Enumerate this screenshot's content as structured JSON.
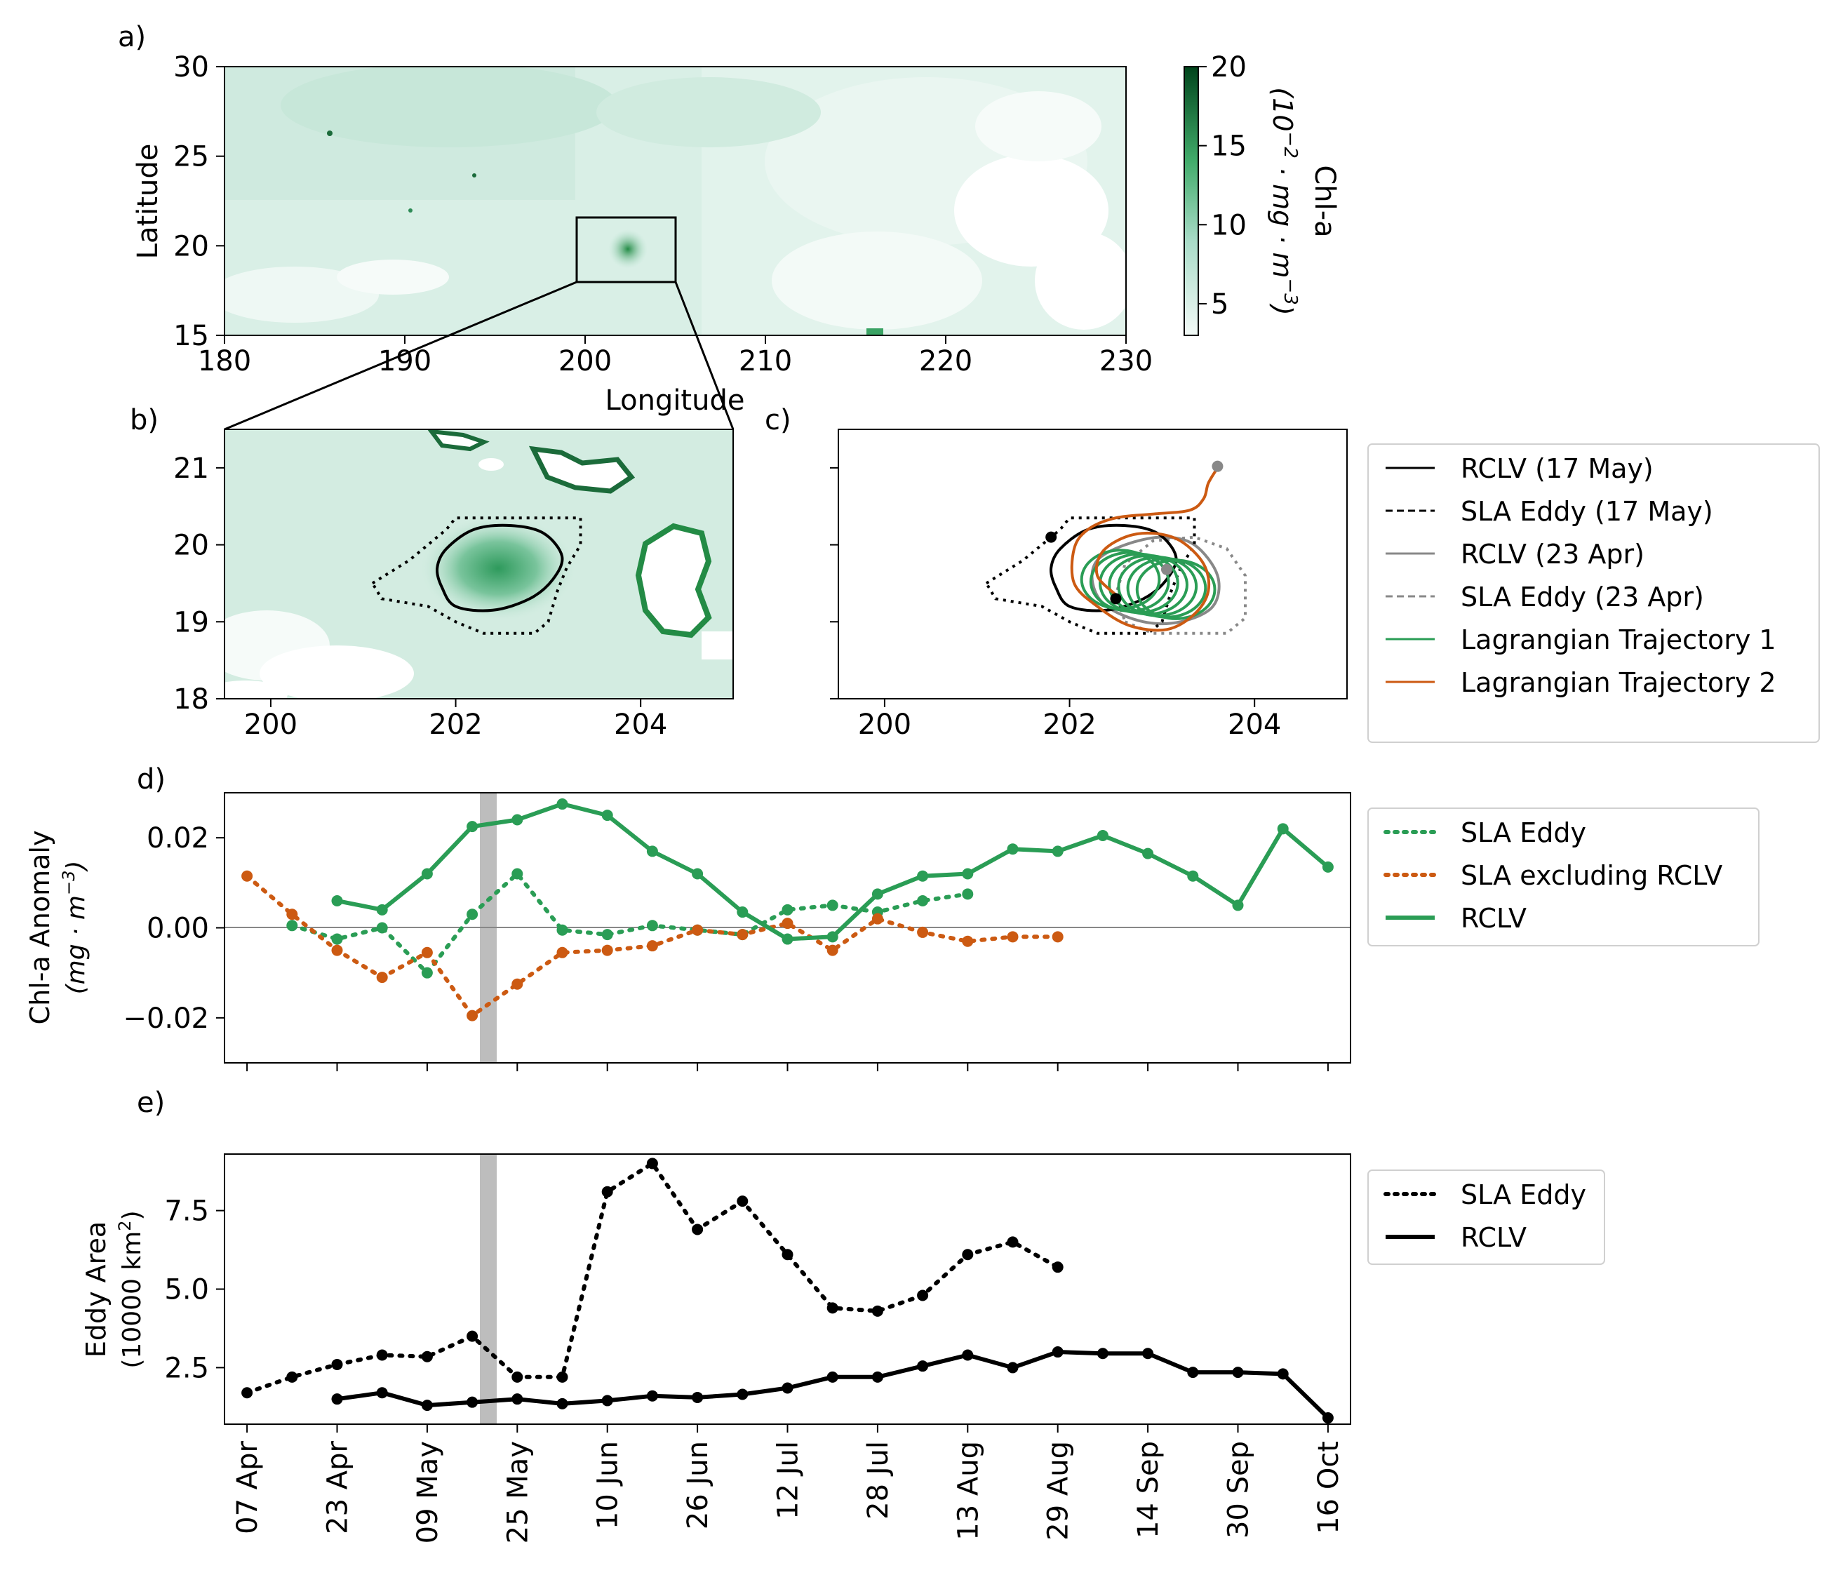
{
  "colors": {
    "chl_low": "#f1f9f6",
    "chl_mid": "#a9dcc8",
    "chl_high": "#00441b",
    "green": "#2a9d55",
    "orange": "#cc5a12",
    "grey": "#888888",
    "shade": "#bdbdbd",
    "black": "#000000"
  },
  "chart_data": [
    {
      "panel": "a",
      "type": "heatmap",
      "panel_label": "a)",
      "xlabel": "Longitude",
      "ylabel": "Latitude",
      "xlim": [
        180,
        230
      ],
      "ylim": [
        15,
        30
      ],
      "xticks": [
        180,
        190,
        200,
        210,
        220,
        230
      ],
      "yticks": [
        15,
        20,
        25,
        30
      ],
      "zoom_box": {
        "lon": [
          199.7,
          205.0
        ],
        "lat": [
          18.0,
          21.6
        ]
      },
      "colorbar": {
        "label": "Chl-a",
        "units": "(10^{-2} · mg · m^{-3})",
        "range": [
          3,
          20
        ],
        "ticks": [
          5,
          10,
          15,
          20
        ]
      }
    },
    {
      "panel": "b",
      "type": "heatmap",
      "panel_label": "b)",
      "xlim": [
        199.5,
        205.0
      ],
      "ylim": [
        18,
        21.5
      ],
      "xticks": [
        200,
        202,
        204
      ],
      "yticks": [
        18,
        19,
        20,
        21
      ],
      "rclv_17may": [
        [
          201.8,
          19.7
        ],
        [
          201.9,
          19.95
        ],
        [
          202.2,
          20.2
        ],
        [
          202.6,
          20.25
        ],
        [
          202.95,
          20.15
        ],
        [
          203.15,
          19.85
        ],
        [
          203.05,
          19.55
        ],
        [
          202.8,
          19.3
        ],
        [
          202.4,
          19.15
        ],
        [
          202.0,
          19.2
        ],
        [
          201.85,
          19.45
        ]
      ],
      "sla_eddy_17may": [
        [
          201.1,
          19.5
        ],
        [
          201.5,
          19.8
        ],
        [
          201.9,
          20.2
        ],
        [
          202.0,
          20.35
        ],
        [
          203.35,
          20.35
        ],
        [
          203.35,
          20.0
        ],
        [
          203.2,
          19.7
        ],
        [
          203.1,
          19.4
        ],
        [
          203.0,
          19.0
        ],
        [
          202.85,
          18.85
        ],
        [
          202.3,
          18.85
        ],
        [
          202.0,
          19.0
        ],
        [
          201.7,
          19.2
        ],
        [
          201.2,
          19.3
        ]
      ]
    },
    {
      "panel": "c",
      "type": "line",
      "panel_label": "c)",
      "xlim": [
        199.5,
        205.0
      ],
      "ylim": [
        18,
        21.5
      ],
      "xticks": [
        200,
        202,
        204
      ],
      "yticks": [
        18,
        19,
        20,
        21
      ],
      "legend_position": "right",
      "series": [
        {
          "name": "RCLV (17 May)",
          "style": "solid-black"
        },
        {
          "name": "SLA Eddy (17 May)",
          "style": "dashed-black"
        },
        {
          "name": "RCLV (23 Apr)",
          "style": "solid-grey"
        },
        {
          "name": "SLA Eddy (23 Apr)",
          "style": "dashed-grey"
        },
        {
          "name": "Lagrangian Trajectory 1",
          "style": "solid-green"
        },
        {
          "name": "Lagrangian Trajectory 2",
          "style": "solid-orange"
        }
      ],
      "rclv_23apr": [
        [
          202.3,
          19.8
        ],
        [
          202.6,
          20.0
        ],
        [
          203.0,
          20.1
        ],
        [
          203.35,
          20.0
        ],
        [
          203.6,
          19.6
        ],
        [
          203.55,
          19.2
        ],
        [
          203.2,
          19.0
        ],
        [
          202.8,
          19.0
        ],
        [
          202.4,
          19.2
        ],
        [
          202.25,
          19.5
        ]
      ],
      "sla_eddy_23apr": [
        [
          202.6,
          19.0
        ],
        [
          202.9,
          18.85
        ],
        [
          203.7,
          18.85
        ],
        [
          203.9,
          19.05
        ],
        [
          203.9,
          19.6
        ],
        [
          203.7,
          19.95
        ],
        [
          203.35,
          20.1
        ],
        [
          202.9,
          20.05
        ],
        [
          202.6,
          19.75
        ],
        [
          202.5,
          19.35
        ]
      ],
      "trajectory2": [
        [
          203.6,
          21.0
        ],
        [
          203.5,
          20.8
        ],
        [
          203.45,
          20.6
        ],
        [
          203.3,
          20.45
        ],
        [
          202.9,
          20.4
        ],
        [
          202.5,
          20.35
        ],
        [
          202.2,
          20.2
        ],
        [
          202.05,
          19.95
        ],
        [
          202.05,
          19.5
        ],
        [
          202.3,
          19.2
        ],
        [
          202.65,
          18.95
        ],
        [
          203.05,
          18.9
        ],
        [
          203.35,
          19.1
        ],
        [
          203.5,
          19.4
        ],
        [
          203.45,
          19.75
        ],
        [
          203.2,
          20.05
        ],
        [
          202.9,
          20.15
        ],
        [
          202.6,
          20.1
        ],
        [
          202.35,
          19.9
        ],
        [
          202.3,
          19.6
        ],
        [
          202.5,
          19.35
        ]
      ],
      "trajectory1_centers": [
        [
          202.55,
          19.55
        ],
        [
          202.65,
          19.52
        ],
        [
          202.75,
          19.5
        ],
        [
          202.85,
          19.48
        ],
        [
          202.95,
          19.46
        ],
        [
          203.05,
          19.44
        ],
        [
          203.15,
          19.42
        ]
      ],
      "trajectory1_radius": [
        0.42,
        0.38
      ],
      "markers": [
        {
          "lon": 201.8,
          "lat": 20.1,
          "color": "black"
        },
        {
          "lon": 202.5,
          "lat": 19.3,
          "color": "black"
        },
        {
          "lon": 203.6,
          "lat": 21.02,
          "color": "grey"
        },
        {
          "lon": 203.05,
          "lat": 19.68,
          "color": "grey"
        }
      ]
    },
    {
      "panel": "d",
      "type": "line",
      "panel_label": "d)",
      "ylabel": "Chl-a Anomaly",
      "ylabel_units": "(mg · m^{-3})",
      "xlim": [
        -4,
        196
      ],
      "ylim": [
        -0.03,
        0.03
      ],
      "yticks": [
        -0.02,
        0.0,
        0.02
      ],
      "ytick_labels": [
        "−0.02",
        "0.00",
        "0.02"
      ],
      "highlight_x": 17,
      "legend_position": "right",
      "series": [
        {
          "name": "SLA Eddy",
          "style": "dotted",
          "color": "green",
          "x": [
            8,
            16,
            24,
            32,
            40,
            48,
            56,
            64,
            72,
            80,
            88,
            96,
            104,
            112,
            120,
            128,
            136,
            144
          ],
          "y": [
            0.0005,
            -0.0025,
            0.0,
            -0.01,
            0.003,
            0.012,
            -0.0005,
            -0.0015,
            0.0005,
            -0.0005,
            -0.0015,
            0.004,
            0.005,
            0.0035,
            0.006,
            0.0075,
            null,
            null
          ]
        },
        {
          "name": "SLA excluding RCLV",
          "style": "dotted",
          "color": "orange",
          "x": [
            0,
            8,
            16,
            24,
            32,
            40,
            48,
            56,
            64,
            72,
            80,
            88,
            96,
            104,
            112,
            120,
            128,
            136,
            144
          ],
          "y": [
            0.0115,
            0.003,
            -0.005,
            -0.011,
            -0.0055,
            -0.0195,
            -0.0125,
            -0.0055,
            -0.005,
            -0.004,
            -0.0005,
            -0.0015,
            0.001,
            -0.005,
            0.002,
            -0.001,
            -0.003,
            -0.002,
            -0.002
          ]
        },
        {
          "name": "RCLV",
          "style": "solid",
          "color": "green",
          "x": [
            16,
            24,
            32,
            40,
            48,
            56,
            64,
            72,
            80,
            88,
            96,
            104,
            112,
            120,
            128,
            136,
            144,
            152,
            160,
            168,
            176,
            184,
            192
          ],
          "y": [
            0.006,
            0.004,
            0.012,
            0.0225,
            0.024,
            0.0275,
            0.025,
            0.017,
            0.012,
            0.0035,
            -0.0025,
            -0.002,
            0.0075,
            0.0115,
            0.012,
            0.0175,
            0.017,
            0.0205,
            0.0165,
            0.0115,
            0.005,
            0.022,
            0.0135
          ]
        }
      ]
    },
    {
      "panel": "e",
      "type": "line",
      "panel_label": "e)",
      "ylabel": "Eddy Area",
      "ylabel_units": "(10000 km^2)",
      "xlim": [
        -4,
        196
      ],
      "ylim": [
        0.7,
        9.3
      ],
      "yticks": [
        2.5,
        5.0,
        7.5
      ],
      "ytick_labels": [
        "2.5",
        "5.0",
        "7.5"
      ],
      "highlight_x": 17,
      "legend_position": "right",
      "xtick_labels": [
        "07 Apr",
        "23 Apr",
        "09 May",
        "25 May",
        "10 Jun",
        "26 Jun",
        "12 Jul",
        "28 Jul",
        "13 Aug",
        "29 Aug",
        "14 Sep",
        "30 Sep",
        "16 Oct"
      ],
      "series": [
        {
          "name": "SLA Eddy",
          "style": "dotted",
          "color": "black",
          "x": [
            0,
            8,
            16,
            24,
            32,
            40,
            48,
            56,
            64,
            72,
            80,
            88,
            96,
            104,
            112,
            120,
            128,
            136,
            144
          ],
          "y": [
            1.7,
            2.2,
            2.6,
            2.9,
            2.85,
            3.5,
            2.2,
            2.2,
            8.1,
            9.0,
            6.9,
            7.8,
            6.1,
            4.4,
            4.3,
            4.8,
            6.1,
            6.5,
            5.7
          ]
        },
        {
          "name": "RCLV",
          "style": "solid",
          "color": "black",
          "x": [
            16,
            24,
            32,
            40,
            48,
            56,
            64,
            72,
            80,
            88,
            96,
            104,
            112,
            120,
            128,
            136,
            144,
            152,
            160,
            168,
            176,
            184,
            192
          ],
          "y": [
            1.5,
            1.7,
            1.3,
            1.4,
            1.5,
            1.35,
            1.45,
            1.6,
            1.55,
            1.65,
            1.85,
            2.2,
            2.2,
            2.55,
            2.9,
            2.5,
            3.0,
            2.95,
            2.95,
            2.35,
            2.35,
            2.3,
            0.9
          ]
        }
      ]
    }
  ]
}
